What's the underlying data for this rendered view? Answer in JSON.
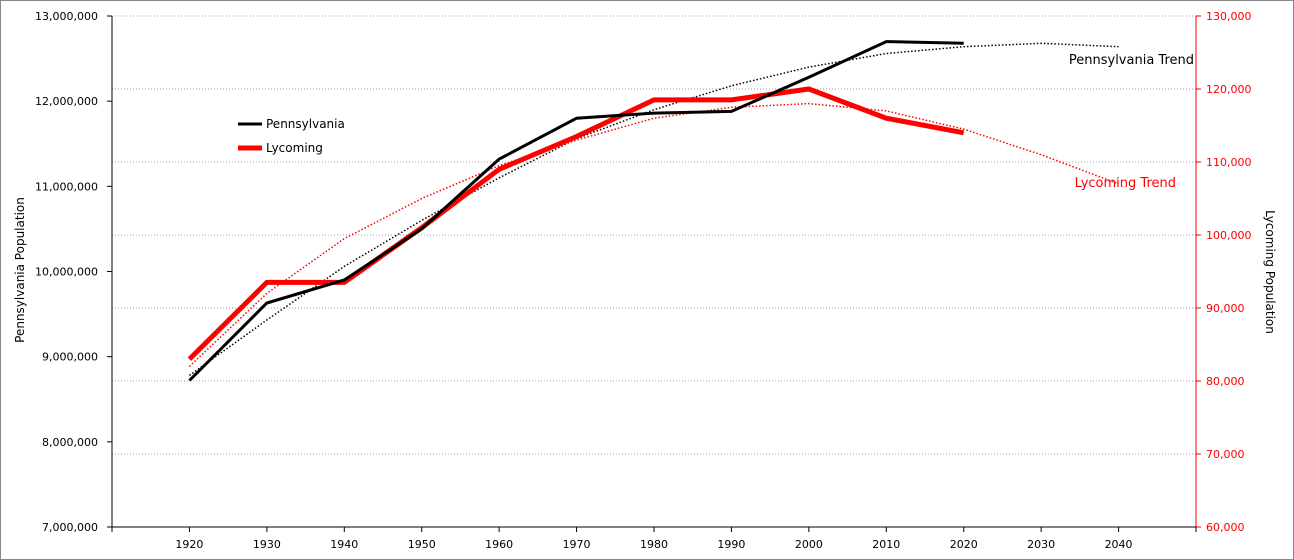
{
  "chart_data": {
    "type": "line",
    "x": [
      1920,
      1930,
      1940,
      1950,
      1960,
      1970,
      1980,
      1990,
      2000,
      2010,
      2020
    ],
    "x_ticks": [
      "1920",
      "1930",
      "1940",
      "1950",
      "1960",
      "1970",
      "1980",
      "1990",
      "2000",
      "2010",
      "2020",
      "2030",
      "2040"
    ],
    "xlim": [
      1910,
      2050
    ],
    "left_axis": {
      "label": "Pennsylvania  Population",
      "ylim": [
        7000000,
        13000000
      ],
      "ticks": [
        "7,000,000",
        "8,000,000",
        "9,000,000",
        "10,000,000",
        "11,000,000",
        "12,000,000",
        "13,000,000"
      ],
      "color": "#000000"
    },
    "right_axis": {
      "label": "Lycoming Population",
      "ylim": [
        60000,
        130000
      ],
      "ticks": [
        "60,000",
        "70,000",
        "80,000",
        "90,000",
        "100,000",
        "110,000",
        "120,000",
        "130,000"
      ],
      "color": "#ff0000"
    },
    "series": [
      {
        "name": "Pennsylvania",
        "axis": "left",
        "color": "#000000",
        "values": [
          8720000,
          9630000,
          9900000,
          10500000,
          11320000,
          11800000,
          11860000,
          11880000,
          12280000,
          12700000,
          12680000
        ]
      },
      {
        "name": "Lycoming",
        "axis": "right",
        "color": "#ff0000",
        "values": [
          83000,
          93500,
          93500,
          101000,
          109000,
          113500,
          118500,
          118500,
          120000,
          116000,
          114000
        ]
      }
    ],
    "trendlines": [
      {
        "name": "Pennsylvania Trend",
        "axis": "left",
        "color": "#000000",
        "x": [
          1920,
          1930,
          1940,
          1950,
          1960,
          1970,
          1980,
          1990,
          2000,
          2010,
          2020,
          2030,
          2040
        ],
        "values": [
          8780000,
          9430000,
          10060000,
          10600000,
          11100000,
          11560000,
          11900000,
          12180000,
          12400000,
          12560000,
          12640000,
          12680000,
          12640000
        ]
      },
      {
        "name": "Lycoming Trend",
        "axis": "right",
        "color": "#ff0000",
        "x": [
          1920,
          1930,
          1940,
          1950,
          1960,
          1970,
          1980,
          1990,
          2000,
          2010,
          2020,
          2030,
          2040
        ],
        "values": [
          82000,
          92000,
          99500,
          105000,
          109500,
          113000,
          116000,
          117500,
          118000,
          117000,
          114500,
          111000,
          107000
        ]
      }
    ],
    "legend": {
      "placement": "upper-left inside plot",
      "entries": [
        "Pennsylvania",
        "Lycoming"
      ]
    },
    "grid": "horizontal dotted on right axis ticks"
  }
}
